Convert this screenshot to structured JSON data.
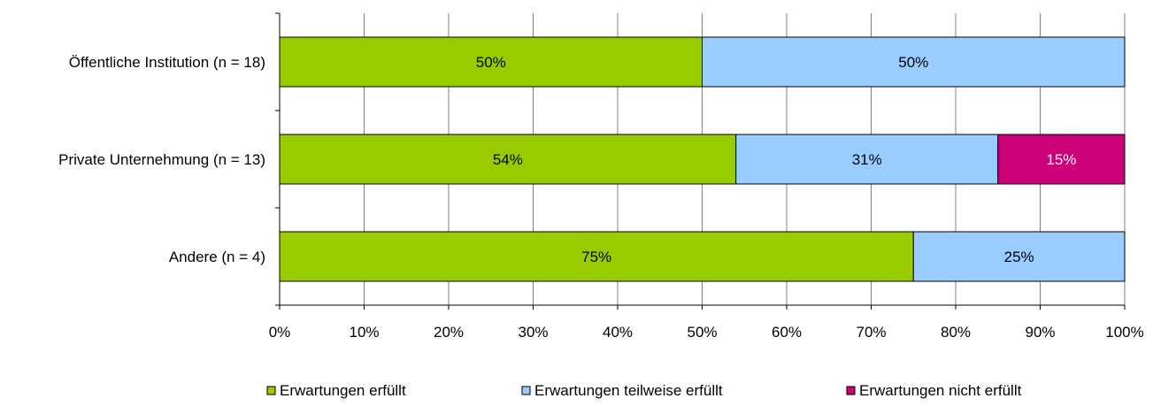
{
  "chart_data": {
    "type": "bar",
    "orientation": "horizontal",
    "stacked": "percent",
    "categories": [
      "Öffentliche Institution (n = 18)",
      "Private Unternehmung (n = 13)",
      "Andere (n = 4)"
    ],
    "series": [
      {
        "name": "Erwartungen erfüllt",
        "color": "#99cc00",
        "values": [
          50,
          54,
          75
        ],
        "labels": [
          "50%",
          "54%",
          "75%"
        ]
      },
      {
        "name": "Erwartungen teilweise erfüllt",
        "color": "#99ccff",
        "values": [
          50,
          31,
          25
        ],
        "labels": [
          "50%",
          "31%",
          "25%"
        ]
      },
      {
        "name": "Erwartungen nicht erfüllt",
        "color": "#cc0077",
        "values": [
          0,
          15,
          0
        ],
        "labels": [
          "",
          "15%",
          ""
        ]
      }
    ],
    "xlim": [
      0,
      100
    ],
    "x_ticks": [
      "0%",
      "10%",
      "20%",
      "30%",
      "40%",
      "50%",
      "60%",
      "70%",
      "80%",
      "90%",
      "100%"
    ],
    "grid": true,
    "legend_position": "bottom"
  }
}
